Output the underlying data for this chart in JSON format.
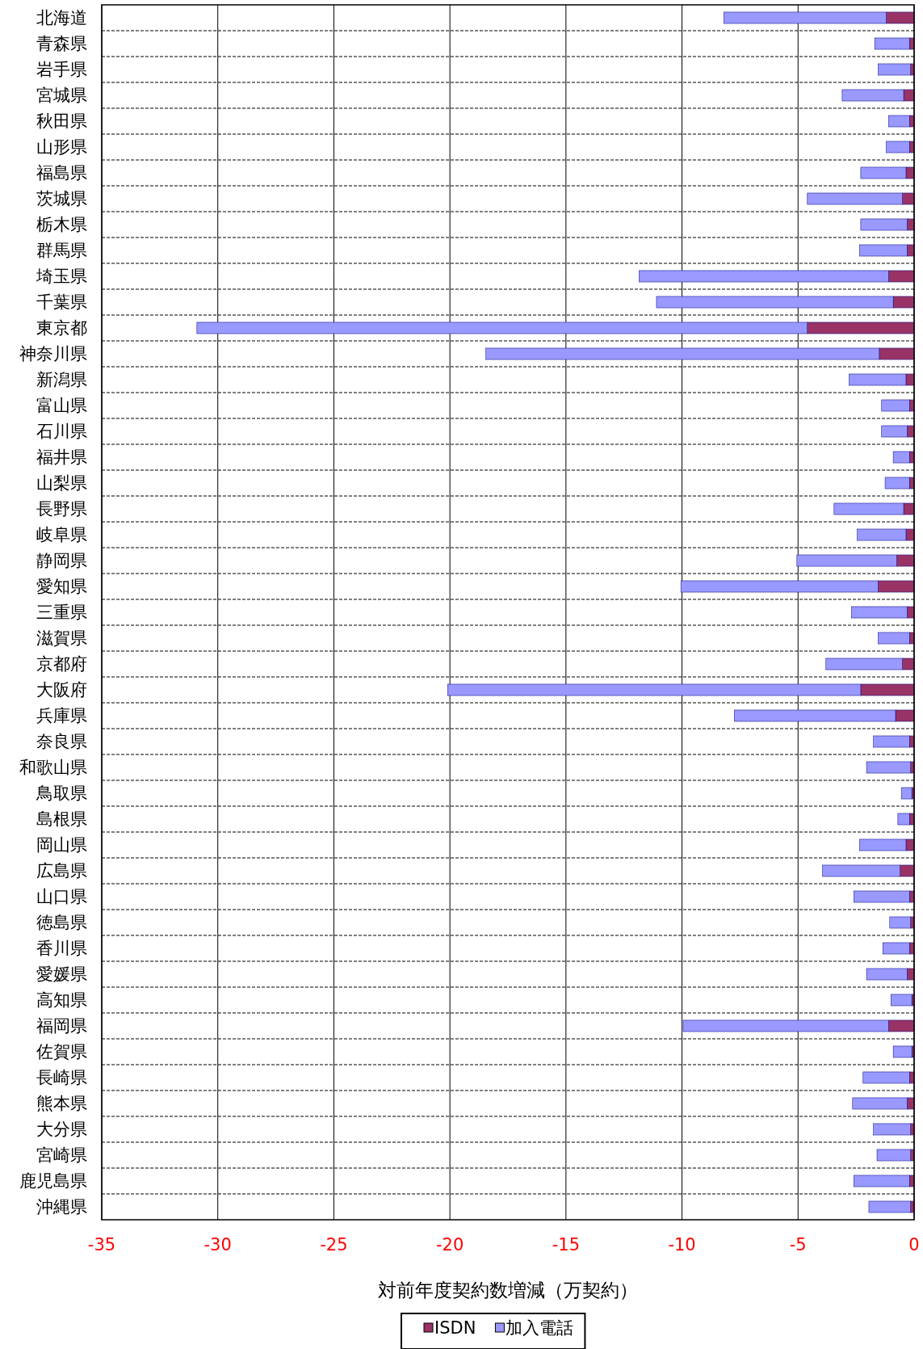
{
  "chart_data": {
    "type": "bar",
    "orientation": "horizontal",
    "stacked": true,
    "xlabel": "対前年度契約数増減（万契約）",
    "xlim": [
      -35,
      0
    ],
    "xticks": [
      -35,
      -30,
      -25,
      -20,
      -15,
      -10,
      -5,
      0
    ],
    "grid": "x",
    "legend": "bottom",
    "categories": [
      "北海道",
      "青森県",
      "岩手県",
      "宮城県",
      "秋田県",
      "山形県",
      "福島県",
      "茨城県",
      "栃木県",
      "群馬県",
      "埼玉県",
      "千葉県",
      "東京都",
      "神奈川県",
      "新潟県",
      "富山県",
      "石川県",
      "福井県",
      "山梨県",
      "長野県",
      "岐阜県",
      "静岡県",
      "愛知県",
      "三重県",
      "滋賀県",
      "京都府",
      "大阪府",
      "兵庫県",
      "奈良県",
      "和歌山県",
      "鳥取県",
      "島根県",
      "岡山県",
      "広島県",
      "山口県",
      "徳島県",
      "香川県",
      "愛媛県",
      "高知県",
      "福岡県",
      "佐賀県",
      "長崎県",
      "熊本県",
      "大分県",
      "宮崎県",
      "鹿児島県",
      "沖縄県"
    ],
    "series": [
      {
        "name": "ISDN",
        "color": "#993366",
        "values": [
          -1.2,
          -0.2,
          -0.15,
          -0.45,
          -0.2,
          -0.2,
          -0.35,
          -0.5,
          -0.3,
          -0.3,
          -1.1,
          -0.9,
          -4.6,
          -1.5,
          -0.35,
          -0.2,
          -0.3,
          -0.2,
          -0.2,
          -0.45,
          -0.35,
          -0.75,
          -1.55,
          -0.3,
          -0.2,
          -0.5,
          -2.3,
          -0.8,
          -0.2,
          -0.15,
          -0.1,
          -0.2,
          -0.35,
          -0.6,
          -0.2,
          -0.15,
          -0.2,
          -0.3,
          -0.1,
          -1.1,
          -0.1,
          -0.2,
          -0.3,
          -0.15,
          -0.15,
          -0.2,
          -0.15
        ]
      },
      {
        "name": "加入電話",
        "color": "#9999ff",
        "values": [
          -7.0,
          -1.5,
          -1.4,
          -2.65,
          -0.9,
          -1.0,
          -1.95,
          -4.1,
          -2.0,
          -2.05,
          -10.75,
          -10.2,
          -26.3,
          -16.95,
          -2.45,
          -1.2,
          -1.1,
          -0.7,
          -1.05,
          -3.0,
          -2.1,
          -4.3,
          -8.5,
          -2.4,
          -1.35,
          -3.3,
          -17.8,
          -6.95,
          -1.55,
          -1.9,
          -0.45,
          -0.5,
          -2.0,
          -3.35,
          -2.4,
          -0.9,
          -1.15,
          -1.75,
          -0.9,
          -8.85,
          -0.8,
          -2.0,
          -2.35,
          -1.6,
          -1.45,
          -2.4,
          -1.8
        ]
      }
    ]
  }
}
